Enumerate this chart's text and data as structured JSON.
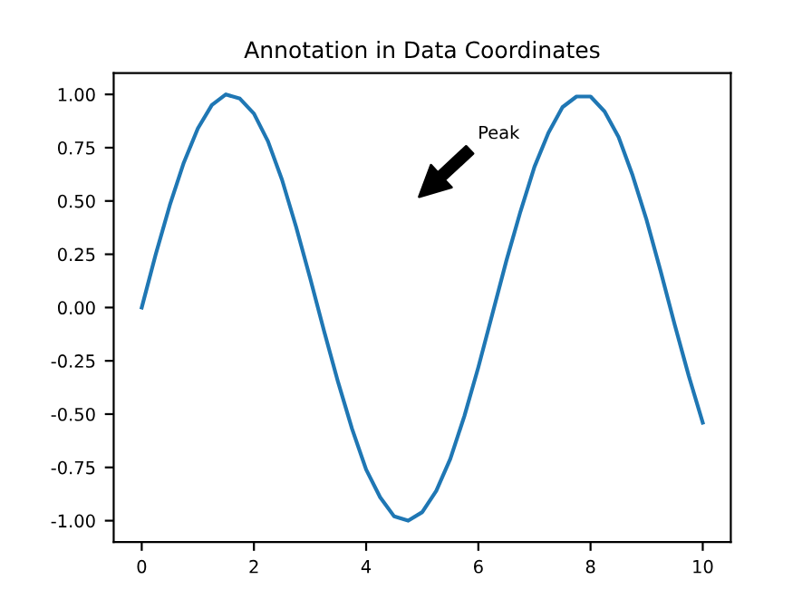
{
  "chart_data": {
    "type": "line",
    "title": "Annotation in Data Coordinates",
    "x": [
      0,
      0.25,
      0.5,
      0.75,
      1,
      1.25,
      1.5,
      1.75,
      2,
      2.25,
      2.5,
      2.75,
      3,
      3.25,
      3.5,
      3.75,
      4,
      4.25,
      4.5,
      4.75,
      5,
      5.25,
      5.5,
      5.75,
      6,
      6.25,
      6.5,
      6.75,
      7,
      7.25,
      7.5,
      7.75,
      8,
      8.25,
      8.5,
      8.75,
      9,
      9.25,
      9.5,
      9.75,
      10
    ],
    "series": [
      {
        "color": "#1f77b4",
        "values": [
          0.0,
          0.25,
          0.48,
          0.68,
          0.84,
          0.95,
          1.0,
          0.98,
          0.91,
          0.78,
          0.6,
          0.38,
          0.14,
          -0.11,
          -0.35,
          -0.57,
          -0.76,
          -0.89,
          -0.98,
          -1.0,
          -0.96,
          -0.86,
          -0.71,
          -0.51,
          -0.28,
          -0.03,
          0.22,
          0.45,
          0.66,
          0.82,
          0.94,
          0.99,
          0.99,
          0.92,
          0.8,
          0.62,
          0.41,
          0.17,
          -0.08,
          -0.32,
          -0.54
        ]
      }
    ],
    "annotations": [
      "Peak"
    ],
    "xlim": [
      -0.5,
      10.5
    ],
    "xticks": [
      0,
      2,
      4,
      6,
      8,
      10
    ],
    "ylim": [
      -1.1,
      1.1
    ],
    "yticks": [
      {
        "value": -1,
        "label": "-1.00"
      },
      {
        "value": -0.75,
        "label": "-0.75"
      },
      {
        "value": -0.5,
        "label": "-0.50"
      },
      {
        "value": -0.25,
        "label": "-0.25"
      },
      {
        "value": 0,
        "label": "0.00"
      },
      {
        "value": 0.25,
        "label": "0.25"
      },
      {
        "value": 0.5,
        "label": "0.50"
      },
      {
        "value": 0.75,
        "label": "0.75"
      },
      {
        "value": 1,
        "label": "1.00"
      }
    ],
    "grid": false,
    "legend": false,
    "marker": "none",
    "line_style": "solid"
  }
}
